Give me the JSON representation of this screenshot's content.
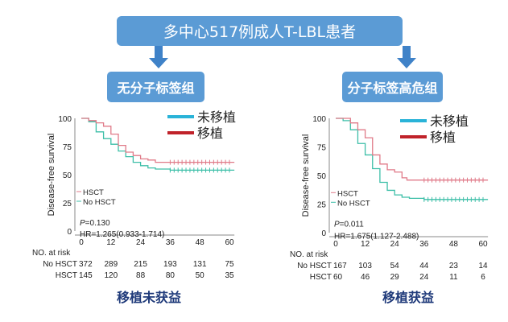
{
  "title": "多中心517例成人T-LBL患者",
  "groups": [
    {
      "label": "无分子标签组",
      "footer": "移植未获益"
    },
    {
      "label": "分子标签高危组",
      "footer": "移植获益"
    }
  ],
  "colors": {
    "banner": "#5b9bd5",
    "legend_no_hsct": "#2ab3d8",
    "legend_hsct": "#c0222a",
    "curve_no_hsct": "#3dbfa8",
    "curve_hsct": "#e07a88",
    "footer": "#1f3a7a"
  },
  "chart_data": [
    {
      "type": "line",
      "ylabel": "Disease-free survival",
      "xticks": [
        0,
        12,
        24,
        36,
        48,
        60
      ],
      "yticks": [
        0,
        25,
        50,
        75,
        100
      ],
      "xlim": [
        0,
        62
      ],
      "ylim": [
        0,
        100
      ],
      "legend_big": [
        "未移植",
        "移植"
      ],
      "legend_small": [
        "HSCT",
        "No HSCT"
      ],
      "p_label": "P",
      "p_value": "=0.130",
      "hr": "HR=1.265(0.933-1.714)",
      "risk_header": "NO. at risk",
      "risk_rows": [
        {
          "name": "No HSCT",
          "values": [
            372,
            289,
            215,
            193,
            131,
            75
          ]
        },
        {
          "name": "HSCT",
          "values": [
            145,
            120,
            88,
            80,
            50,
            35
          ]
        }
      ],
      "series": [
        {
          "name": "No HSCT",
          "x": [
            0,
            3,
            6,
            9,
            12,
            15,
            18,
            21,
            24,
            27,
            30,
            36,
            62
          ],
          "y": [
            100,
            97,
            88,
            82,
            77,
            71,
            66,
            61,
            58,
            56,
            55,
            54,
            54
          ]
        },
        {
          "name": "HSCT",
          "x": [
            0,
            3,
            6,
            9,
            12,
            15,
            18,
            21,
            24,
            27,
            30,
            62
          ],
          "y": [
            100,
            98,
            96,
            93,
            86,
            76,
            70,
            67,
            64,
            63,
            61,
            61
          ]
        }
      ]
    },
    {
      "type": "line",
      "ylabel": "Disease-free survival",
      "xticks": [
        0,
        12,
        24,
        36,
        48,
        60
      ],
      "yticks": [
        0,
        25,
        50,
        75,
        100
      ],
      "xlim": [
        0,
        62
      ],
      "ylim": [
        0,
        100
      ],
      "legend_big": [
        "未移植",
        "移植"
      ],
      "legend_small": [
        "HSCT",
        "No HSCT"
      ],
      "p_label": "P",
      "p_value": "=0.011",
      "hr": "HR=1.675(1.127-2.488)",
      "risk_header": "NO. at risk",
      "risk_rows": [
        {
          "name": "No HSCT",
          "values": [
            167,
            103,
            54,
            44,
            23,
            14
          ]
        },
        {
          "name": "HSCT",
          "values": [
            60,
            46,
            29,
            24,
            11,
            6
          ]
        }
      ],
      "series": [
        {
          "name": "No HSCT",
          "x": [
            0,
            3,
            6,
            9,
            12,
            15,
            18,
            21,
            24,
            27,
            30,
            36,
            62
          ],
          "y": [
            100,
            98,
            90,
            78,
            68,
            56,
            44,
            37,
            33,
            31,
            30,
            29,
            29
          ]
        },
        {
          "name": "HSCT",
          "x": [
            0,
            3,
            6,
            9,
            12,
            15,
            18,
            21,
            24,
            27,
            29,
            62
          ],
          "y": [
            100,
            100,
            96,
            90,
            83,
            68,
            60,
            55,
            53,
            48,
            46,
            46
          ]
        }
      ]
    }
  ]
}
